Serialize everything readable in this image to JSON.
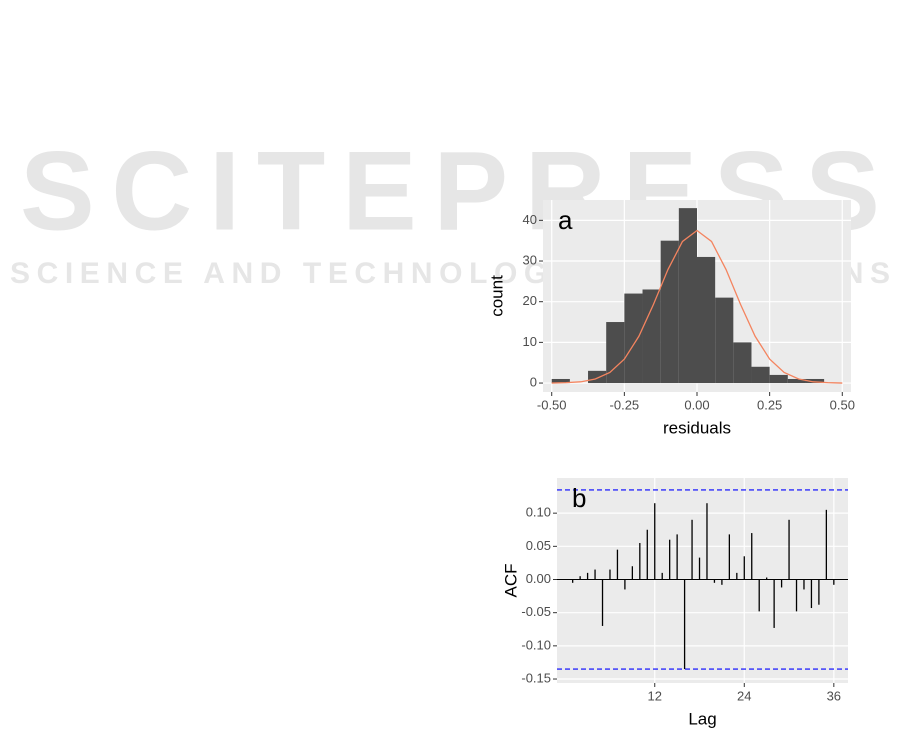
{
  "watermark": {
    "title": "SCITEPRESS",
    "subtitle": "SCIENCE AND TECHNOLOGY PUBLICATIONS"
  },
  "chart_data": [
    {
      "type": "histogram",
      "annotation": "a",
      "x_label": "residuals",
      "y_label": "count",
      "bins": [
        -0.5,
        -0.4375,
        -0.375,
        -0.3125,
        -0.25,
        -0.1875,
        -0.125,
        -0.0625,
        0,
        0.0625,
        0.125,
        0.1875,
        0.25,
        0.3125,
        0.375,
        0.4375,
        0.5
      ],
      "values": [
        1,
        0,
        3,
        15,
        22,
        23,
        35,
        43,
        31,
        21,
        10,
        4,
        2,
        1,
        1,
        0
      ],
      "color": "#4d4d4d",
      "curve": {
        "x": [
          -0.5,
          -0.45,
          -0.4,
          -0.35,
          -0.3,
          -0.25,
          -0.2,
          -0.15,
          -0.1,
          -0.05,
          0,
          0.05,
          0.1,
          0.15,
          0.2,
          0.25,
          0.3,
          0.35,
          0.4,
          0.45,
          0.5
        ],
        "values": [
          0,
          0.1,
          0.3,
          1.0,
          2.6,
          5.9,
          11.5,
          19.3,
          27.9,
          34.8,
          37.5,
          34.8,
          27.9,
          19.3,
          11.5,
          5.9,
          2.6,
          1.0,
          0.3,
          0.1,
          0
        ],
        "color": "#f4845f"
      },
      "xlim": [
        -0.53,
        0.53
      ],
      "ylim": [
        -2.2,
        45
      ],
      "xticks": [
        {
          "value": -0.5,
          "label": "-0.50"
        },
        {
          "value": -0.25,
          "label": "-0.25"
        },
        {
          "value": 0,
          "label": "0.00"
        },
        {
          "value": 0.25,
          "label": "0.25"
        },
        {
          "value": 0.5,
          "label": "0.50"
        }
      ],
      "yticks": [
        0,
        10,
        20,
        30,
        40
      ],
      "grid": true
    },
    {
      "type": "acf",
      "annotation": "b",
      "x_label": "Lag",
      "y_label": "ACF",
      "x": [
        1,
        2,
        3,
        4,
        5,
        6,
        7,
        8,
        9,
        10,
        11,
        12,
        13,
        14,
        15,
        16,
        17,
        18,
        19,
        20,
        21,
        22,
        23,
        24,
        25,
        26,
        27,
        28,
        29,
        30,
        31,
        32,
        33,
        34,
        35,
        36
      ],
      "values": [
        -0.005,
        0.005,
        0.01,
        0.015,
        -0.07,
        0.015,
        0.045,
        -0.015,
        0.02,
        0.055,
        0.075,
        0.115,
        0.01,
        0.06,
        0.068,
        -0.135,
        0.09,
        0.033,
        0.115,
        -0.005,
        -0.008,
        0.068,
        0.01,
        0.035,
        0.07,
        -0.048,
        0.003,
        -0.073,
        -0.012,
        0.09,
        -0.048,
        -0.015,
        -0.043,
        -0.038,
        0.105,
        -0.008
      ],
      "color": "#000000",
      "confidence_limits": [
        0.135,
        -0.135
      ],
      "confidence_color": "#0000ff",
      "xlim": [
        -1.1,
        37.9
      ],
      "ylim": [
        -0.156,
        0.153
      ],
      "xticks": [
        12,
        24,
        36
      ],
      "yticks": [
        {
          "value": 0.1,
          "label": "0.10"
        },
        {
          "value": 0.05,
          "label": "0.05"
        },
        {
          "value": 0,
          "label": "0.00"
        },
        {
          "value": -0.05,
          "label": "-0.05"
        },
        {
          "value": -0.1,
          "label": "-0.10"
        },
        {
          "value": -0.15,
          "label": "-0.15"
        }
      ],
      "grid": true
    }
  ]
}
